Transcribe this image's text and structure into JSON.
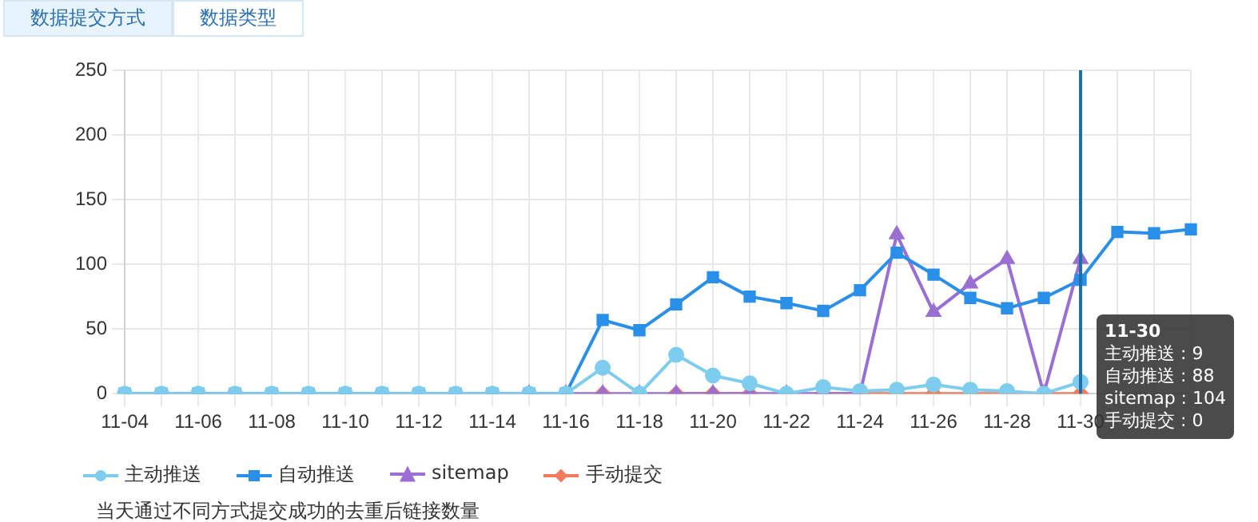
{
  "chart_data": {
    "type": "line",
    "categories": [
      "11-04",
      null,
      "11-06",
      null,
      "11-08",
      null,
      "11-10",
      null,
      "11-12",
      null,
      "11-14",
      null,
      "11-16",
      null,
      "11-18",
      null,
      "11-20",
      null,
      "11-22",
      null,
      "11-24",
      null,
      "11-26",
      null,
      "11-28",
      null,
      "11-30",
      null,
      null,
      null
    ],
    "series": [
      {
        "name": "主动推送",
        "color": "#7fcdee",
        "marker": "circle",
        "values": [
          0,
          0,
          0,
          0,
          0,
          0,
          0,
          0,
          0,
          0,
          0,
          0,
          0,
          20,
          0,
          30,
          14,
          8,
          0,
          5,
          2,
          3,
          7,
          3,
          2,
          0,
          9,
          null,
          null,
          null
        ]
      },
      {
        "name": "自动推送",
        "color": "#2a8fe8",
        "marker": "square",
        "values": [
          0,
          0,
          0,
          0,
          0,
          0,
          0,
          0,
          0,
          0,
          0,
          0,
          0,
          57,
          49,
          69,
          90,
          75,
          70,
          64,
          80,
          109,
          92,
          74,
          66,
          74,
          88,
          125,
          124,
          127
        ]
      },
      {
        "name": "sitemap",
        "color": "#9a6fd4",
        "marker": "triangle",
        "values": [
          null,
          null,
          null,
          null,
          null,
          null,
          null,
          null,
          null,
          null,
          null,
          0,
          0,
          0,
          0,
          0,
          0,
          0,
          0,
          0,
          0,
          123,
          63,
          85,
          104,
          0,
          104,
          null,
          null,
          null
        ]
      },
      {
        "name": "手动提交",
        "color": "#f47a5e",
        "marker": "diamond",
        "values": [
          null,
          null,
          null,
          null,
          null,
          null,
          null,
          null,
          null,
          null,
          null,
          null,
          null,
          0,
          null,
          0,
          0,
          0,
          null,
          0,
          0,
          0,
          0,
          0,
          0,
          0,
          0,
          null,
          null,
          null
        ]
      }
    ],
    "ylim": [
      0,
      250
    ],
    "yticks": [
      0,
      50,
      100,
      150,
      200,
      250
    ],
    "grid": true,
    "legend": "bottom left",
    "ref_lines": [
      {
        "axis": "x",
        "value": "11-30",
        "color": "#1f6fa8"
      }
    ],
    "annotations": [
      "数据提交方式",
      "数据类型",
      "当天通过不同方式提交成功的去重后链接数量",
      "11-30",
      "主动推送 : 9",
      "自动推送 : 88",
      "sitemap : 104",
      "手动提交 : 0"
    ]
  }
}
